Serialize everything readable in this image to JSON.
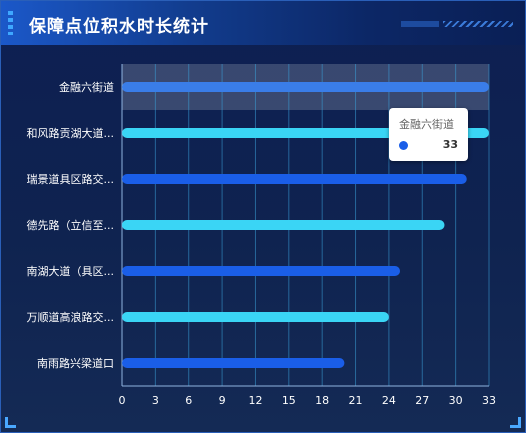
{
  "header": {
    "title": "保障点位积水时长统计"
  },
  "tooltip": {
    "category": "金融六街道",
    "value": "33"
  },
  "colors": {
    "dark_bar": "#1a5ee8",
    "light_bar": "#3ad5f5",
    "highlight_bar": "#3a7de8"
  },
  "chart_data": {
    "type": "bar",
    "orientation": "horizontal",
    "categories": [
      "金融六街道",
      "和风路贡湖大道...",
      "瑞景道具区路交...",
      "德先路（立信至...",
      "南湖大道（具区...",
      "万顺道高浪路交...",
      "南雨路兴梁道口"
    ],
    "values": [
      33,
      33,
      31,
      29,
      25,
      24,
      20
    ],
    "x_ticks": [
      0,
      3,
      6,
      9,
      12,
      15,
      18,
      21,
      24,
      27,
      30,
      33
    ],
    "xlim": [
      0,
      33
    ],
    "grid": true,
    "highlighted_category": "金融六街道"
  }
}
